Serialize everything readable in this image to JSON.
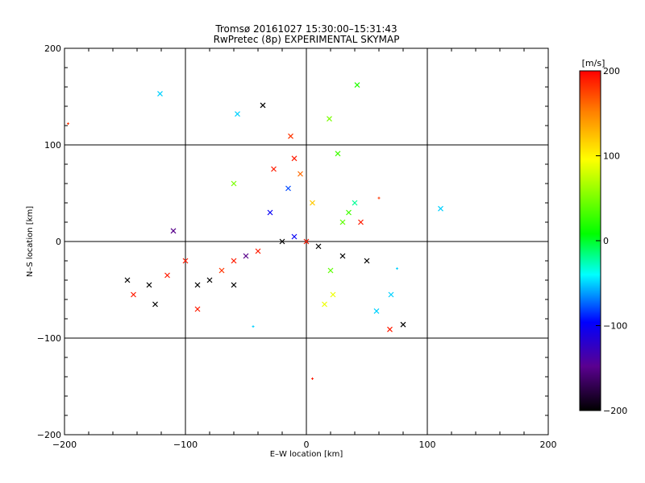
{
  "chart_data": {
    "type": "scatter",
    "title": "Tromsø 20161027 15:30:00–15:31:43",
    "subtitle": "RwPretec (8p) EXPERIMENTAL SKYMAP",
    "xlabel": "E–W location [km]",
    "ylabel": "N–S location [km]",
    "xlim": [
      -200,
      200
    ],
    "ylim": [
      -200,
      200
    ],
    "x_ticks": [
      "−200",
      "−100",
      "0",
      "100",
      "200"
    ],
    "y_ticks": [
      "−200",
      "−100",
      "0",
      "100",
      "200"
    ],
    "grid": true,
    "marker_styles": [
      "x",
      "+"
    ],
    "colorbar": {
      "label": "[m/s]",
      "range": [
        -200,
        200
      ],
      "ticks": [
        "200",
        "100",
        "0",
        "−100",
        "−200"
      ],
      "colormap": [
        "#000000",
        "#5a0090",
        "#0000ff",
        "#00ffff",
        "#00ff00",
        "#ffff00",
        "#ff8000",
        "#ff0000"
      ]
    },
    "points": [
      {
        "x": -121,
        "y": 153,
        "v": -50,
        "m": "x"
      },
      {
        "x": -57,
        "y": 132,
        "v": -50,
        "m": "x"
      },
      {
        "x": -36,
        "y": 141,
        "v": -200,
        "m": "x"
      },
      {
        "x": 42,
        "y": 162,
        "v": 20,
        "m": "x"
      },
      {
        "x": 19,
        "y": 127,
        "v": 50,
        "m": "x"
      },
      {
        "x": -13,
        "y": 109,
        "v": 180,
        "m": "x"
      },
      {
        "x": 26,
        "y": 91,
        "v": 30,
        "m": "x"
      },
      {
        "x": -197,
        "y": 122,
        "v": 180,
        "m": "+"
      },
      {
        "x": 111,
        "y": 34,
        "v": -50,
        "m": "x"
      },
      {
        "x": -110,
        "y": 11,
        "v": -150,
        "m": "x"
      },
      {
        "x": -148,
        "y": -40,
        "v": -200,
        "m": "x"
      },
      {
        "x": -143,
        "y": -55,
        "v": 190,
        "m": "x"
      },
      {
        "x": -125,
        "y": -65,
        "v": -200,
        "m": "x"
      },
      {
        "x": -90,
        "y": -70,
        "v": 190,
        "m": "x"
      },
      {
        "x": 69,
        "y": -91,
        "v": 190,
        "m": "x"
      },
      {
        "x": 80,
        "y": -86,
        "v": -200,
        "m": "x"
      },
      {
        "x": 58,
        "y": -72,
        "v": -50,
        "m": "x"
      },
      {
        "x": 70,
        "y": -55,
        "v": -50,
        "m": "x"
      },
      {
        "x": 75,
        "y": -28,
        "v": -50,
        "m": "+"
      },
      {
        "x": 5,
        "y": -142,
        "v": 190,
        "m": "+"
      },
      {
        "x": -44,
        "y": -88,
        "v": -50,
        "m": "+"
      },
      {
        "x": -60,
        "y": 60,
        "v": 50,
        "m": "x"
      },
      {
        "x": 60,
        "y": 45,
        "v": 180,
        "m": "+"
      },
      {
        "x": -10,
        "y": 86,
        "v": 190,
        "m": "x"
      },
      {
        "x": -27,
        "y": 75,
        "v": 190,
        "m": "x"
      },
      {
        "x": -5,
        "y": 70,
        "v": 160,
        "m": "x"
      },
      {
        "x": 35,
        "y": 30,
        "v": 30,
        "m": "x"
      },
      {
        "x": 40,
        "y": 40,
        "v": -20,
        "m": "x"
      },
      {
        "x": 30,
        "y": 20,
        "v": 40,
        "m": "x"
      },
      {
        "x": 20,
        "y": -30,
        "v": 40,
        "m": "x"
      },
      {
        "x": 22,
        "y": -55,
        "v": 90,
        "m": "x"
      },
      {
        "x": 15,
        "y": -65,
        "v": 90,
        "m": "x"
      },
      {
        "x": -100,
        "y": -20,
        "v": 190,
        "m": "x"
      },
      {
        "x": -80,
        "y": -40,
        "v": -200,
        "m": "x"
      },
      {
        "x": -70,
        "y": -30,
        "v": 180,
        "m": "x"
      },
      {
        "x": -60,
        "y": -20,
        "v": 190,
        "m": "x"
      },
      {
        "x": -50,
        "y": -15,
        "v": -150,
        "m": "x"
      },
      {
        "x": -40,
        "y": -10,
        "v": 190,
        "m": "x"
      },
      {
        "x": -20,
        "y": 0,
        "v": -200,
        "m": "x"
      },
      {
        "x": -10,
        "y": 5,
        "v": -100,
        "m": "x"
      },
      {
        "x": 0,
        "y": 0,
        "v": 190,
        "m": "x"
      },
      {
        "x": 10,
        "y": -5,
        "v": -200,
        "m": "x"
      },
      {
        "x": 30,
        "y": -15,
        "v": -200,
        "m": "x"
      },
      {
        "x": 50,
        "y": -20,
        "v": -200,
        "m": "x"
      },
      {
        "x": 45,
        "y": 20,
        "v": 190,
        "m": "x"
      },
      {
        "x": -30,
        "y": 30,
        "v": -100,
        "m": "x"
      },
      {
        "x": -15,
        "y": 55,
        "v": -80,
        "m": "x"
      },
      {
        "x": 5,
        "y": 40,
        "v": 120,
        "m": "x"
      },
      {
        "x": -90,
        "y": -45,
        "v": -200,
        "m": "x"
      },
      {
        "x": -115,
        "y": -35,
        "v": 190,
        "m": "x"
      },
      {
        "x": -130,
        "y": -45,
        "v": -200,
        "m": "x"
      },
      {
        "x": -60,
        "y": -45,
        "v": -200,
        "m": "x"
      }
    ]
  }
}
